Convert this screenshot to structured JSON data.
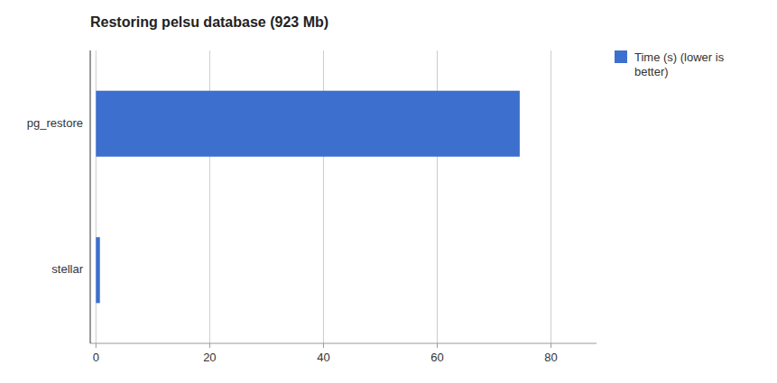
{
  "chart_data": {
    "type": "bar",
    "orientation": "horizontal",
    "title": "Restoring pelsu database (923 Mb)",
    "categories": [
      "pg_restore",
      "stellar"
    ],
    "series": [
      {
        "name": "Time (s) (lower is\nbetter)",
        "color": "#3d6fce",
        "values": [
          74.5,
          0.7
        ]
      }
    ],
    "xlim": [
      -1,
      88
    ],
    "xticks": [
      0,
      20,
      40,
      60,
      80
    ],
    "grid": true,
    "legend": "right"
  }
}
